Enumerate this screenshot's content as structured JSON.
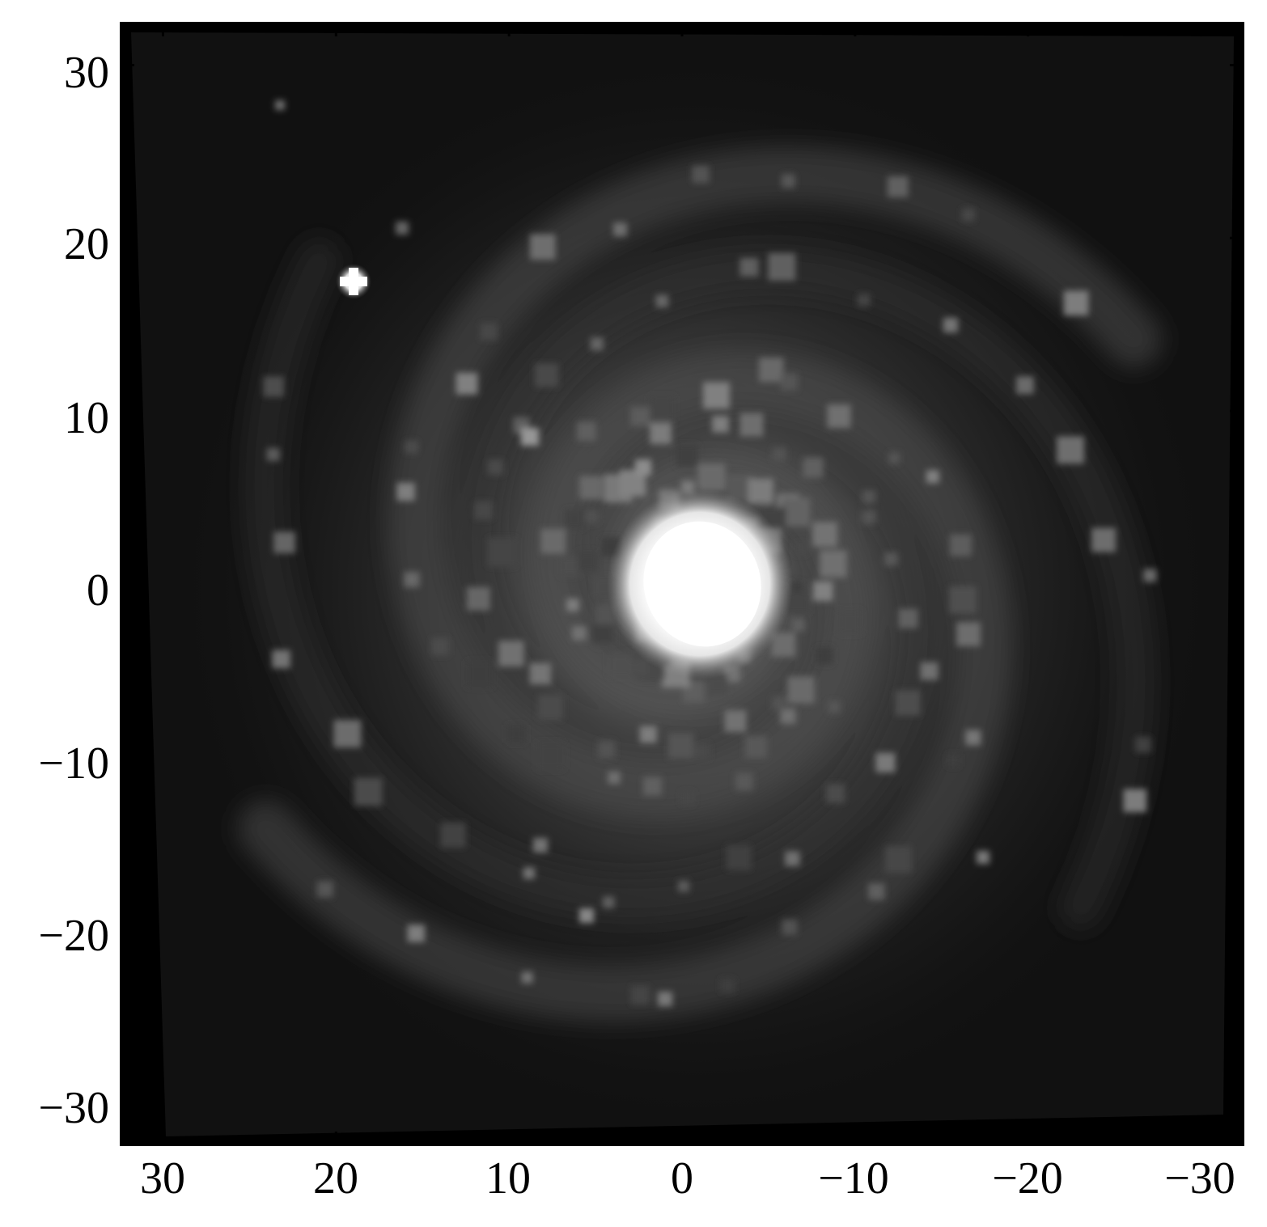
{
  "image": {
    "subject": "face-on spiral galaxy",
    "colormap": "grayscale",
    "bright_features": [
      "galaxy-core",
      "foreground-star"
    ]
  },
  "axes": {
    "x_ticks": [
      "30",
      "20",
      "10",
      "0",
      "−10",
      "−20",
      "−30"
    ],
    "y_ticks": [
      "30",
      "20",
      "10",
      "0",
      "−10",
      "−20",
      "−30"
    ],
    "x_values": [
      30,
      20,
      10,
      0,
      -10,
      -20,
      -30
    ],
    "y_values": [
      30,
      20,
      10,
      0,
      -10,
      -20,
      -30
    ],
    "x_range": [
      32.5,
      -32.5
    ],
    "y_range": [
      -32.5,
      32.5
    ],
    "tick_direction": "in"
  },
  "colors": {
    "background": "#0e0e0e",
    "frame": "#000000",
    "core": "#ffffff",
    "tick_text": "#000000"
  }
}
